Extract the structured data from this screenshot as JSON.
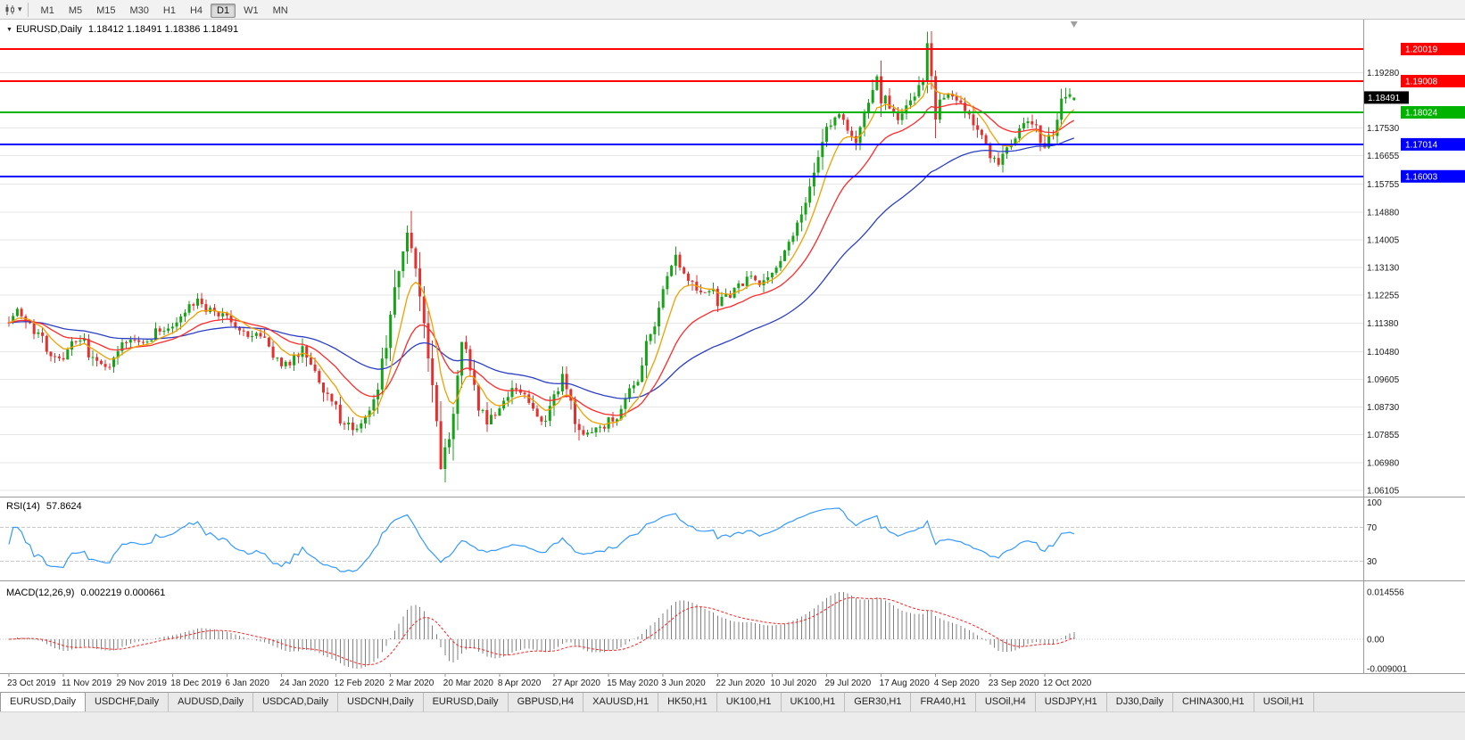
{
  "toolbar": {
    "timeframes": [
      "M1",
      "M5",
      "M15",
      "M30",
      "H1",
      "H4",
      "D1",
      "W1",
      "MN"
    ],
    "active_timeframe": "D1",
    "chart_type_icon": "candlestick-chart",
    "dropdown_icon": "▾"
  },
  "chart_header": {
    "collapse_icon": "▼",
    "symbol_label": "EURUSD,Daily",
    "ohlc": "1.18412 1.18491 1.18386 1.18491"
  },
  "indicators": {
    "rsi_label": "RSI(14)",
    "rsi_value": "57.8624",
    "rsi_axis_labels": [
      "100",
      "70",
      "30"
    ],
    "macd_label": "MACD(12,26,9)",
    "macd_values": "0.002219 0.000661",
    "macd_axis_labels": [
      "0.014556",
      "0.00",
      "-0.009001"
    ]
  },
  "price_axis": {
    "labels": [
      "1.19280",
      "1.17530",
      "1.16655",
      "1.15755",
      "1.14880",
      "1.14005",
      "1.13130",
      "1.12255",
      "1.11380",
      "1.10480",
      "1.09605",
      "1.08730",
      "1.07855",
      "1.06980",
      "1.06105"
    ],
    "tags": [
      {
        "text": "1.20019",
        "price": 1.20019,
        "color": "#ff0000",
        "type": "line"
      },
      {
        "text": "1.19008",
        "price": 1.19008,
        "color": "#ff0000",
        "type": "line"
      },
      {
        "text": "1.18491",
        "price": 1.18491,
        "color": "#000000",
        "type": "current"
      },
      {
        "text": "1.18024",
        "price": 1.18024,
        "color": "#00b300",
        "type": "line"
      },
      {
        "text": "1.17014",
        "price": 1.17014,
        "color": "#0000ff",
        "type": "line"
      },
      {
        "text": "1.16003",
        "price": 1.16003,
        "color": "#0000ff",
        "type": "line"
      }
    ]
  },
  "x_axis": {
    "dates": [
      "23 Oct 2019",
      "11 Nov 2019",
      "29 Nov 2019",
      "18 Dec 2019",
      "6 Jan 2020",
      "24 Jan 2020",
      "12 Feb 2020",
      "2 Mar 2020",
      "20 Mar 2020",
      "8 Apr 2020",
      "27 Apr 2020",
      "15 May 2020",
      "3 Jun 2020",
      "22 Jun 2020",
      "10 Jul 2020",
      "29 Jul 2020",
      "17 Aug 2020",
      "4 Sep 2020",
      "23 Sep 2020",
      "12 Oct 2020"
    ]
  },
  "tabs": [
    {
      "label": "EURUSD,Daily",
      "active": true
    },
    {
      "label": "USDCHF,Daily"
    },
    {
      "label": "AUDUSD,Daily"
    },
    {
      "label": "USDCAD,Daily"
    },
    {
      "label": "USDCNH,Daily"
    },
    {
      "label": "EURUSD,Daily"
    },
    {
      "label": "GBPUSD,H4"
    },
    {
      "label": "XAUUSD,H1"
    },
    {
      "label": "HK50,H1"
    },
    {
      "label": "UK100,H1"
    },
    {
      "label": "UK100,H1"
    },
    {
      "label": "GER30,H1"
    },
    {
      "label": "FRA40,H1"
    },
    {
      "label": "USOil,H4"
    },
    {
      "label": "USDJPY,H1"
    },
    {
      "label": "DJ30,Daily"
    },
    {
      "label": "CHINA300,H1"
    },
    {
      "label": "USOil,H1"
    }
  ],
  "chart_data": {
    "type": "candlestick",
    "symbol": "EURUSD",
    "timeframe": "Daily",
    "seed": 7,
    "candle_count": 255,
    "up_color": "#17a317",
    "down_color": "#e53030",
    "last_candle": {
      "o": 1.18412,
      "h": 1.18491,
      "l": 1.18386,
      "c": 1.18491
    },
    "anchors": [
      [
        0,
        1.114
      ],
      [
        3,
        1.1175
      ],
      [
        6,
        1.1125
      ],
      [
        9,
        1.108
      ],
      [
        13,
        1.102
      ],
      [
        16,
        1.1065
      ],
      [
        19,
        1.1075
      ],
      [
        22,
        1.1005
      ],
      [
        26,
        1.1015
      ],
      [
        29,
        1.108
      ],
      [
        33,
        1.1075
      ],
      [
        36,
        1.111
      ],
      [
        39,
        1.112
      ],
      [
        43,
        1.1175
      ],
      [
        46,
        1.12
      ],
      [
        49,
        1.1175
      ],
      [
        52,
        1.116
      ],
      [
        55,
        1.112
      ],
      [
        58,
        1.1105
      ],
      [
        61,
        1.109
      ],
      [
        65,
        1.102
      ],
      [
        68,
        1.1005
      ],
      [
        71,
        1.1075
      ],
      [
        74,
        1.099
      ],
      [
        77,
        1.0915
      ],
      [
        80,
        1.084
      ],
      [
        83,
        1.0795
      ],
      [
        86,
        1.0835
      ],
      [
        88,
        1.0895
      ],
      [
        90,
        1.1025
      ],
      [
        92,
        1.1165
      ],
      [
        94,
        1.133
      ],
      [
        96,
        1.1435
      ],
      [
        97,
        1.137
      ],
      [
        98,
        1.13
      ],
      [
        100,
        1.111
      ],
      [
        102,
        1.092
      ],
      [
        104,
        1.071
      ],
      [
        106,
        1.078
      ],
      [
        108,
        1.101
      ],
      [
        109,
        1.1065
      ],
      [
        111,
        1.1
      ],
      [
        113,
        1.088
      ],
      [
        115,
        1.0825
      ],
      [
        118,
        1.087
      ],
      [
        121,
        1.0925
      ],
      [
        124,
        1.0905
      ],
      [
        127,
        1.084
      ],
      [
        129,
        1.082
      ],
      [
        131,
        1.089
      ],
      [
        133,
        1.0955
      ],
      [
        135,
        1.0875
      ],
      [
        137,
        1.08
      ],
      [
        140,
        1.079
      ],
      [
        143,
        1.0815
      ],
      [
        146,
        1.085
      ],
      [
        149,
        1.0925
      ],
      [
        152,
        1.0995
      ],
      [
        154,
        1.1105
      ],
      [
        157,
        1.1235
      ],
      [
        160,
        1.1335
      ],
      [
        162,
        1.1295
      ],
      [
        164,
        1.1245
      ],
      [
        166,
        1.122
      ],
      [
        168,
        1.1255
      ],
      [
        170,
        1.12
      ],
      [
        172,
        1.1215
      ],
      [
        175,
        1.125
      ],
      [
        178,
        1.128
      ],
      [
        180,
        1.1255
      ],
      [
        183,
        1.13
      ],
      [
        186,
        1.1385
      ],
      [
        189,
        1.144
      ],
      [
        191,
        1.1505
      ],
      [
        193,
        1.1595
      ],
      [
        195,
        1.1715
      ],
      [
        197,
        1.1775
      ],
      [
        199,
        1.1785
      ],
      [
        201,
        1.1755
      ],
      [
        203,
        1.172
      ],
      [
        205,
        1.1785
      ],
      [
        207,
        1.187
      ],
      [
        208,
        1.1925
      ],
      [
        209,
        1.1865
      ],
      [
        211,
        1.1795
      ],
      [
        213,
        1.178
      ],
      [
        215,
        1.181
      ],
      [
        217,
        1.1855
      ],
      [
        219,
        1.192
      ],
      [
        220,
        1.1985
      ],
      [
        221,
        1.192
      ],
      [
        222,
        1.1815
      ],
      [
        224,
        1.185
      ],
      [
        226,
        1.1865
      ],
      [
        228,
        1.1835
      ],
      [
        230,
        1.1795
      ],
      [
        232,
        1.1745
      ],
      [
        234,
        1.169
      ],
      [
        236,
        1.1645
      ],
      [
        237,
        1.163
      ],
      [
        239,
        1.1685
      ],
      [
        241,
        1.173
      ],
      [
        243,
        1.176
      ],
      [
        244,
        1.178
      ],
      [
        246,
        1.1745
      ],
      [
        248,
        1.17
      ],
      [
        250,
        1.173
      ],
      [
        251,
        1.178
      ],
      [
        252,
        1.183
      ],
      [
        253,
        1.186
      ],
      [
        254,
        1.1849
      ]
    ],
    "spikes": [
      {
        "i": 96,
        "h": 1.1492
      },
      {
        "i": 104,
        "l": 1.0636
      },
      {
        "i": 208,
        "h": 1.1966
      },
      {
        "i": 220,
        "h": 1.2011
      },
      {
        "i": 237,
        "l": 1.1612
      }
    ],
    "hlines": [
      {
        "price": 1.20019,
        "color": "#ff0000"
      },
      {
        "price": 1.19008,
        "color": "#ff0000"
      },
      {
        "price": 1.18024,
        "color": "#00b300"
      },
      {
        "price": 1.17014,
        "color": "#0000ff"
      },
      {
        "price": 1.16003,
        "color": "#0000ff"
      }
    ],
    "moving_averages": [
      {
        "period": 55,
        "color": "#2b3fc4"
      },
      {
        "period": 21,
        "color": "#ff2a2a"
      },
      {
        "period": 8,
        "color": "#f0a000"
      }
    ],
    "rsi": {
      "period": 14,
      "color": "#3399ff",
      "levels": [
        70,
        30
      ]
    },
    "macd": {
      "fast": 12,
      "slow": 26,
      "signal": 9,
      "hist_color": "#808080",
      "signal_color": "#ff2020",
      "max": 0.014556,
      "min": -0.009001
    }
  }
}
